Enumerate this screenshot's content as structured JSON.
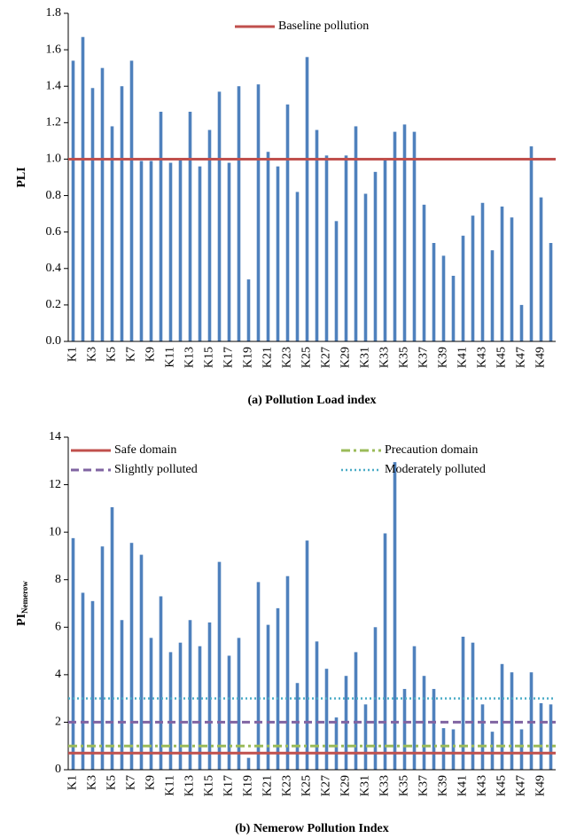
{
  "chart_data": [
    {
      "type": "bar",
      "caption": "(a)  Pollution Load index",
      "y_label": "PLI",
      "categories": [
        "K1",
        null,
        "K3",
        null,
        "K5",
        null,
        "K7",
        null,
        "K9",
        null,
        "K11",
        null,
        "K13",
        null,
        "K15",
        null,
        "K17",
        null,
        "K19",
        null,
        "K21",
        null,
        "K23",
        null,
        "K25",
        null,
        "K27",
        null,
        "K29",
        null,
        "K31",
        null,
        "K33",
        null,
        "K35",
        null,
        "K37",
        null,
        "K39",
        null,
        "K41",
        null,
        "K43",
        null,
        "K45",
        null,
        "K47",
        null,
        "K49",
        null
      ],
      "values": [
        1.54,
        1.67,
        1.39,
        1.5,
        1.18,
        1.4,
        1.54,
        0.99,
        0.99,
        1.26,
        0.98,
        1.0,
        1.26,
        0.96,
        1.16,
        1.37,
        0.98,
        1.4,
        0.34,
        1.41,
        1.04,
        0.96,
        1.3,
        0.82,
        1.56,
        1.16,
        1.02,
        0.66,
        1.02,
        1.18,
        0.81,
        0.93,
        1.0,
        1.15,
        1.19,
        1.15,
        0.75,
        0.54,
        0.47,
        0.36,
        0.58,
        0.69,
        0.76,
        0.5,
        0.74,
        0.68,
        0.2,
        1.07,
        0.79,
        0.54
      ],
      "color": "#4f81bd",
      "ylim": [
        0,
        1.8
      ],
      "yticks": [
        {
          "value": 0,
          "label": "0.0"
        },
        0.2,
        0.4,
        0.6,
        0.8,
        {
          "value": 1,
          "label": "1.0"
        },
        1.2,
        1.4,
        1.6,
        1.8
      ],
      "reference_lines": [
        {
          "name": "Baseline pollution",
          "value": 1,
          "color": "#c0504d",
          "dash": "solid"
        }
      ],
      "legend": "top"
    },
    {
      "type": "bar",
      "caption": "(b) Nemerow Pollution Index",
      "y_label": "PI",
      "y_label_subscript": "Nemerow",
      "categories": [
        "K1",
        null,
        "K3",
        null,
        "K5",
        null,
        "K7",
        null,
        "K9",
        null,
        "K11",
        null,
        "K13",
        null,
        "K15",
        null,
        "K17",
        null,
        "K19",
        null,
        "K21",
        null,
        "K23",
        null,
        "K25",
        null,
        "K27",
        null,
        "K29",
        null,
        "K31",
        null,
        "K33",
        null,
        "K35",
        null,
        "K37",
        null,
        "K39",
        null,
        "K41",
        null,
        "K43",
        null,
        "K45",
        null,
        "K47",
        null,
        "K49",
        null
      ],
      "values": [
        9.75,
        7.45,
        7.1,
        9.4,
        11.05,
        6.3,
        9.55,
        9.05,
        5.55,
        7.3,
        4.95,
        5.35,
        6.3,
        5.2,
        6.2,
        8.75,
        4.8,
        5.55,
        0.5,
        7.9,
        6.1,
        6.8,
        8.15,
        3.65,
        9.65,
        5.4,
        4.25,
        2.2,
        3.95,
        4.95,
        2.75,
        6.0,
        9.95,
        12.95,
        3.4,
        5.2,
        3.95,
        3.4,
        1.75,
        1.7,
        5.6,
        5.35,
        2.75,
        1.6,
        4.45,
        4.1,
        1.7,
        4.1,
        2.8,
        2.75
      ],
      "color": "#4f81bd",
      "ylim": [
        0,
        14
      ],
      "yticks": [
        0,
        2,
        4,
        6,
        8,
        10,
        12,
        14
      ],
      "reference_lines": [
        {
          "name": "Safe domain",
          "value": 0.7,
          "color": "#c0504d",
          "dash": "solid"
        },
        {
          "name": "Precaution domain",
          "value": 1,
          "color": "#9bbb59",
          "dash": "dashdot"
        },
        {
          "name": "Slightly polluted",
          "value": 2,
          "color": "#8064a2",
          "dash": "dashed"
        },
        {
          "name": "Moderately polluted",
          "value": 3,
          "color": "#4bacc6",
          "dash": "dotted"
        }
      ],
      "legend": "top"
    }
  ]
}
